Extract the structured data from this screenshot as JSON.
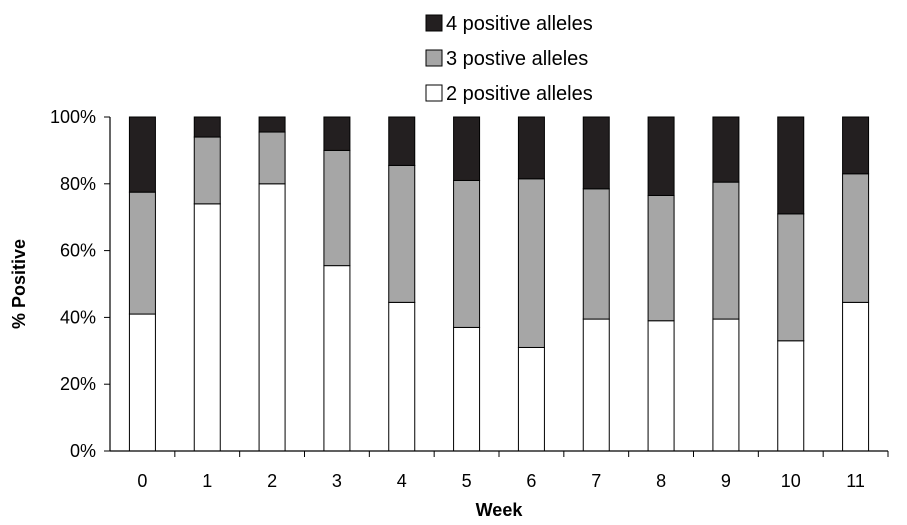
{
  "chart_data": {
    "type": "bar",
    "stacked": true,
    "percent": true,
    "xlabel": "Week",
    "ylabel": "% Positive",
    "ylim": [
      0,
      100
    ],
    "yticks": [
      "0%",
      "20%",
      "40%",
      "60%",
      "80%",
      "100%"
    ],
    "categories": [
      "0",
      "1",
      "2",
      "3",
      "4",
      "5",
      "6",
      "7",
      "8",
      "9",
      "10",
      "11"
    ],
    "legend_position": "top-right",
    "grid": false,
    "series": [
      {
        "name": "2 positive alleles",
        "color": "#ffffff",
        "values": [
          41,
          74,
          80,
          55.5,
          44.5,
          37,
          31,
          39.5,
          39,
          39.5,
          33,
          44.5
        ]
      },
      {
        "name": "3 postive alleles",
        "color": "#a6a6a6",
        "values": [
          36.5,
          20,
          15.5,
          34.5,
          41,
          44,
          50.5,
          39,
          37.5,
          41,
          38,
          38.5
        ]
      },
      {
        "name": "4 positive alleles",
        "color": "#231f20",
        "values": [
          22.5,
          6,
          4.5,
          10,
          14.5,
          19,
          18.5,
          21.5,
          23.5,
          19.5,
          29,
          17
        ]
      }
    ],
    "legend": [
      {
        "name": "4 positive alleles",
        "color": "#231f20"
      },
      {
        "name": "3 postive alleles",
        "color": "#a6a6a6"
      },
      {
        "name": "2 positive alleles",
        "color": "#ffffff"
      }
    ]
  }
}
